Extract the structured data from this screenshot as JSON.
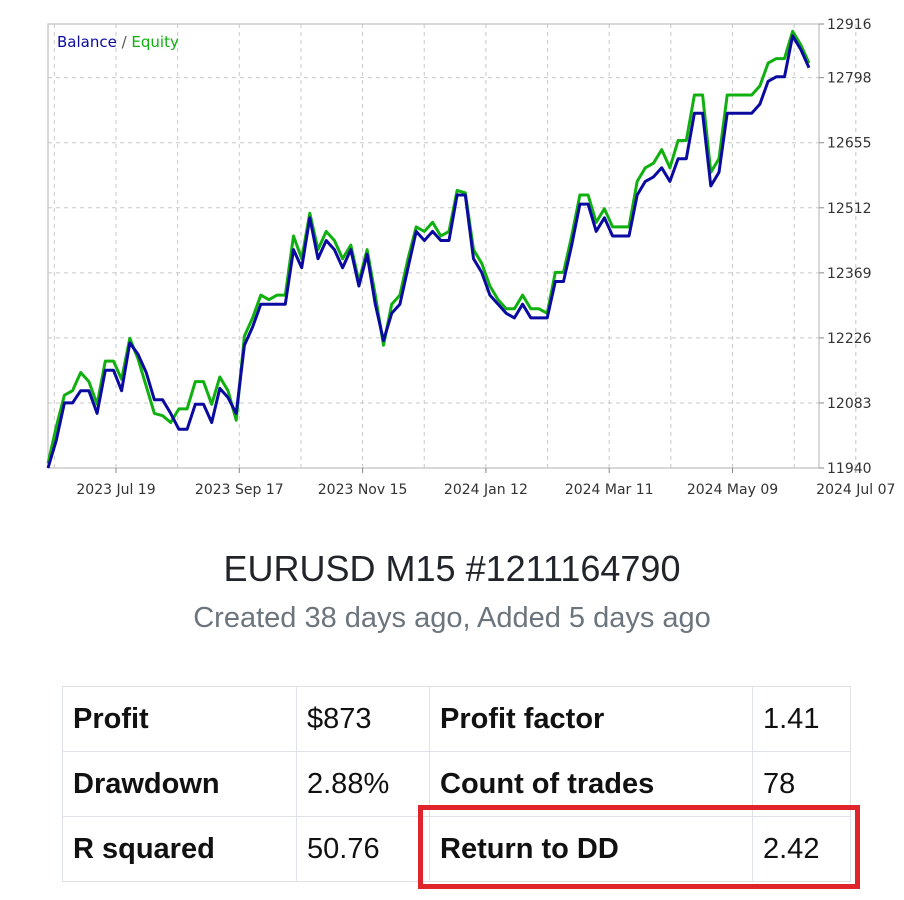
{
  "chart_data": {
    "type": "line",
    "legend": {
      "balance_label": "Balance",
      "separator": " / ",
      "equity_label": "Equity",
      "position": "top-left"
    },
    "grid": true,
    "y_ticks": [
      "12916",
      "12798",
      "12655",
      "12512",
      "12369",
      "12226",
      "12083",
      "11940"
    ],
    "y_tick_values": [
      12916,
      12798,
      12655,
      12512,
      12369,
      12226,
      12083,
      11940
    ],
    "ylim": [
      11940,
      12916
    ],
    "x_ticks": [
      "2023 Jul 19",
      "2023 Sep 17",
      "2023 Nov 15",
      "2024 Jan 12",
      "2024 Mar 11",
      "2024 May 09",
      "2024 Jul 07"
    ],
    "xlim": [
      "2023 Jun 28",
      "2024 Jul 07"
    ],
    "series": [
      {
        "name": "Balance",
        "color": "#0a0aa0",
        "values": [
          11940,
          12000,
          12083,
          12083,
          12110,
          12110,
          12060,
          12155,
          12155,
          12110,
          12215,
          12190,
          12150,
          12090,
          12090,
          12060,
          12025,
          12025,
          12080,
          12080,
          12040,
          12115,
          12095,
          12060,
          12210,
          12250,
          12300,
          12300,
          12300,
          12300,
          12420,
          12380,
          12490,
          12400,
          12440,
          12420,
          12380,
          12420,
          12340,
          12410,
          12300,
          12220,
          12280,
          12300,
          12380,
          12460,
          12440,
          12460,
          12440,
          12440,
          12540,
          12540,
          12400,
          12370,
          12320,
          12300,
          12280,
          12270,
          12300,
          12270,
          12270,
          12270,
          12350,
          12350,
          12430,
          12520,
          12520,
          12460,
          12490,
          12450,
          12450,
          12450,
          12540,
          12570,
          12580,
          12600,
          12570,
          12620,
          12620,
          12720,
          12720,
          12560,
          12590,
          12720,
          12720,
          12720,
          12720,
          12740,
          12790,
          12800,
          12800,
          12890,
          12860,
          12820
        ]
      },
      {
        "name": "Equity",
        "color": "#10b010",
        "values": [
          11950,
          12030,
          12100,
          12110,
          12150,
          12130,
          12080,
          12175,
          12175,
          12135,
          12225,
          12180,
          12120,
          12060,
          12055,
          12040,
          12070,
          12070,
          12130,
          12130,
          12080,
          12140,
          12110,
          12045,
          12230,
          12270,
          12320,
          12310,
          12320,
          12320,
          12450,
          12400,
          12500,
          12420,
          12460,
          12440,
          12400,
          12430,
          12350,
          12420,
          12320,
          12210,
          12300,
          12320,
          12400,
          12470,
          12460,
          12480,
          12450,
          12460,
          12550,
          12545,
          12420,
          12390,
          12340,
          12310,
          12290,
          12290,
          12320,
          12290,
          12290,
          12280,
          12370,
          12370,
          12450,
          12540,
          12540,
          12480,
          12510,
          12470,
          12470,
          12470,
          12570,
          12600,
          12610,
          12640,
          12600,
          12660,
          12660,
          12760,
          12760,
          12590,
          12620,
          12760,
          12760,
          12760,
          12760,
          12780,
          12830,
          12840,
          12840,
          12900,
          12870,
          12830
        ]
      }
    ]
  },
  "card": {
    "title": "EURUSD M15 #1211164790",
    "subtitle": "Created 38 days ago, Added 5 days ago"
  },
  "stats": {
    "rows": [
      {
        "label1": "Profit",
        "value1": "$873",
        "label2": "Profit factor",
        "value2": "1.41"
      },
      {
        "label1": "Drawdown",
        "value1": "2.88%",
        "label2": "Count of trades",
        "value2": "78"
      },
      {
        "label1": "R squared",
        "value1": "50.76",
        "label2": "Return to DD",
        "value2": "2.42"
      }
    ]
  },
  "highlight_color": "#e0242b"
}
